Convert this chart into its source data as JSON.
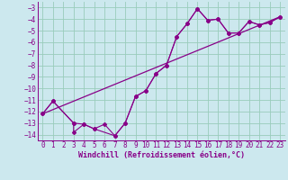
{
  "xlabel": "Windchill (Refroidissement éolien,°C)",
  "bg_color": "#cce8ee",
  "grid_color": "#99ccbb",
  "line_color": "#880088",
  "axis_color": "#880088",
  "xlim": [
    -0.5,
    23.5
  ],
  "ylim": [
    -14.5,
    -2.5
  ],
  "xticks": [
    0,
    1,
    2,
    3,
    4,
    5,
    6,
    7,
    8,
    9,
    10,
    11,
    12,
    13,
    14,
    15,
    16,
    17,
    18,
    19,
    20,
    21,
    22,
    23
  ],
  "yticks": [
    -3,
    -4,
    -5,
    -6,
    -7,
    -8,
    -9,
    -10,
    -11,
    -12,
    -13,
    -14
  ],
  "line1_x": [
    0,
    1,
    3,
    3,
    4,
    5,
    6,
    7,
    8,
    9,
    10,
    11,
    12,
    13,
    14,
    15,
    16,
    17,
    18,
    19,
    20,
    21,
    22,
    23
  ],
  "line1_y": [
    -12.2,
    -11.1,
    -13.0,
    -13.8,
    -13.1,
    -13.5,
    -13.1,
    -14.1,
    -13.0,
    -10.7,
    -10.2,
    -8.7,
    -8.0,
    -5.5,
    -4.4,
    -3.1,
    -4.1,
    -4.0,
    -5.2,
    -5.2,
    -4.2,
    -4.5,
    -4.3,
    -3.8
  ],
  "line2_x": [
    0,
    1,
    3,
    4,
    5,
    7,
    8,
    9,
    10,
    11,
    12,
    13,
    14,
    15,
    16,
    17,
    18,
    19,
    20,
    21,
    22,
    23
  ],
  "line2_y": [
    -12.2,
    -11.1,
    -13.0,
    -13.1,
    -13.5,
    -14.1,
    -13.0,
    -10.7,
    -10.2,
    -8.7,
    -8.0,
    -5.5,
    -4.4,
    -3.1,
    -4.1,
    -4.0,
    -5.2,
    -5.2,
    -4.2,
    -4.5,
    -4.3,
    -3.8
  ],
  "line3_x": [
    0,
    23
  ],
  "line3_y": [
    -12.2,
    -3.8
  ],
  "tick_fontsize": 5.5,
  "xlabel_fontsize": 6.0
}
